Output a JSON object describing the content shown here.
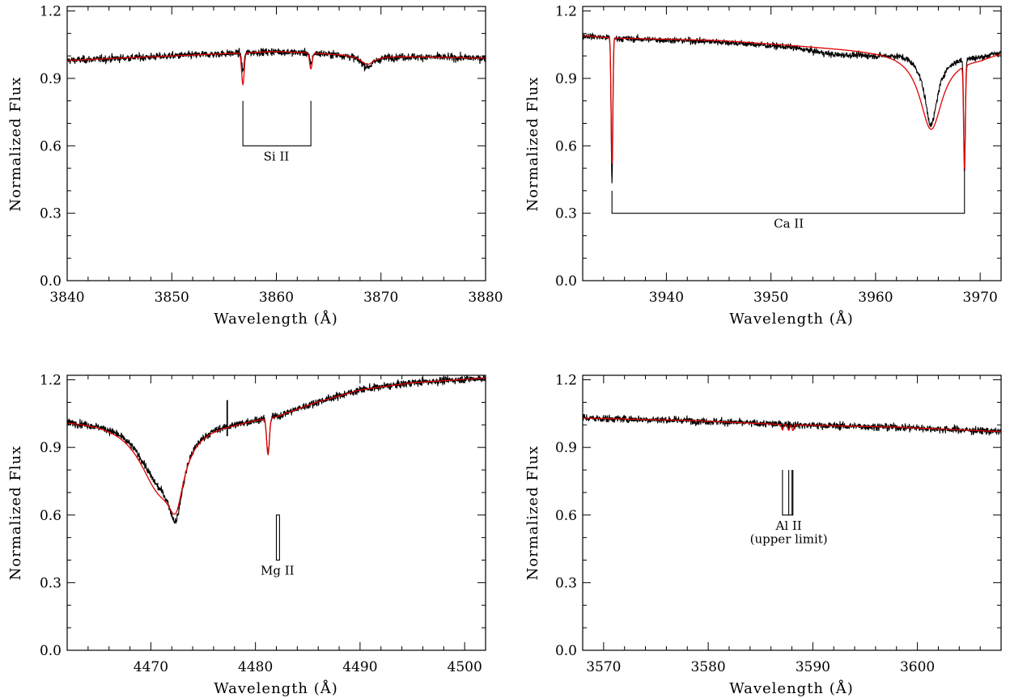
{
  "chart_data": [
    {
      "type": "line",
      "id": "si",
      "xlabel": "Wavelength (Å)",
      "ylabel": "Normalized Flux",
      "xlim": [
        3840,
        3880
      ],
      "ylim": [
        0.0,
        1.22
      ],
      "xticks": [
        3840,
        3850,
        3860,
        3870,
        3880
      ],
      "yticks": [
        0.0,
        0.3,
        0.6,
        0.9,
        1.2
      ],
      "ytick_labels": [
        "0.0",
        "0.3",
        "0.6",
        "0.9",
        "1.2"
      ],
      "continuum": [
        [
          3840,
          0.98
        ],
        [
          3850,
          1.0
        ],
        [
          3860,
          1.02
        ],
        [
          3870,
          1.0
        ],
        [
          3880,
          0.99
        ]
      ],
      "model_lines": [
        {
          "center": 3856.8,
          "depth": 0.14,
          "width": 0.12,
          "shape": "gauss"
        },
        {
          "center": 3863.3,
          "depth": 0.07,
          "width": 0.12,
          "shape": "gauss"
        },
        {
          "center": 3868.7,
          "depth": 0.04,
          "width": 0.8,
          "shape": "lorentz"
        }
      ],
      "observed_lines": [
        {
          "center": 3856.8,
          "depth": 0.08,
          "width": 0.12,
          "shape": "gauss"
        },
        {
          "center": 3863.3,
          "depth": 0.05,
          "width": 0.12,
          "shape": "gauss"
        },
        {
          "center": 3868.7,
          "depth": 0.05,
          "width": 0.8,
          "shape": "lorentz"
        }
      ],
      "noise": 0.012,
      "annotations": [
        {
          "label": "Si II",
          "bracket": {
            "type": "bracket",
            "x1": 3856.8,
            "x2": 3863.3,
            "y_top": 0.8,
            "y_base": 0.6
          },
          "text_x": 3860.0,
          "text_y": 0.535
        }
      ]
    },
    {
      "type": "line",
      "id": "ca",
      "xlabel": "Wavelength (Å)",
      "ylabel": "Normalized Flux",
      "xlim": [
        3932,
        3972
      ],
      "ylim": [
        0.0,
        1.22
      ],
      "xticks": [
        3940,
        3950,
        3960,
        3970
      ],
      "yticks": [
        0.0,
        0.3,
        0.6,
        0.9,
        1.2
      ],
      "ytick_labels": [
        "0.0",
        "0.3",
        "0.6",
        "0.9",
        "1.2"
      ],
      "continuum": [
        [
          3932,
          1.09
        ],
        [
          3935,
          1.08
        ],
        [
          3945,
          1.07
        ],
        [
          3955,
          1.04
        ],
        [
          3962,
          1.02
        ],
        [
          3966,
          1.0
        ],
        [
          3970,
          1.0
        ],
        [
          3972,
          1.02
        ]
      ],
      "model_lines": [
        {
          "center": 3934.8,
          "depth": 0.56,
          "width": 0.08,
          "shape": "gauss"
        },
        {
          "center": 3968.5,
          "depth": 0.47,
          "width": 0.08,
          "shape": "gauss"
        },
        {
          "center": 3965.3,
          "depth": 0.33,
          "width": 1.3,
          "shape": "lorentz"
        }
      ],
      "observed_lines": [
        {
          "center": 3934.8,
          "depth": 0.64,
          "width": 0.08,
          "shape": "gauss"
        },
        {
          "center": 3968.5,
          "depth": 0.45,
          "width": 0.08,
          "shape": "gauss"
        },
        {
          "center": 3965.3,
          "depth": 0.31,
          "width": 0.75,
          "shape": "lorentz"
        }
      ],
      "observed_offsets": [
        [
          3932,
          0.0
        ],
        [
          3952,
          -0.01
        ],
        [
          3956,
          -0.03
        ],
        [
          3960,
          -0.02
        ],
        [
          3963,
          0.0
        ],
        [
          3972,
          0.0
        ]
      ],
      "noise": 0.01,
      "annotations": [
        {
          "label": "Ca II",
          "bracket": {
            "type": "bracket_unequal",
            "x1": 3934.8,
            "x2": 3968.5,
            "y_top1": 0.4,
            "y_top2": 0.5,
            "y_base": 0.3
          },
          "text_x": 3951.7,
          "text_y": 0.235
        }
      ]
    },
    {
      "type": "line",
      "id": "mg",
      "xlabel": "Wavelength (Å)",
      "ylabel": "Normalized Flux",
      "xlim": [
        4462,
        4502
      ],
      "ylim": [
        0.0,
        1.22
      ],
      "xticks": [
        4470,
        4480,
        4490,
        4500
      ],
      "yticks": [
        0.0,
        0.3,
        0.6,
        0.9,
        1.2
      ],
      "ytick_labels": [
        "0.0",
        "0.3",
        "0.6",
        "0.9",
        "1.2"
      ],
      "continuum": [
        [
          4462,
          1.03
        ],
        [
          4470,
          1.03
        ],
        [
          4478,
          1.03
        ],
        [
          4482,
          1.05
        ],
        [
          4486,
          1.11
        ],
        [
          4490,
          1.16
        ],
        [
          4495,
          1.19
        ],
        [
          4502,
          1.21
        ]
      ],
      "model_lines": [
        {
          "center": 4470.8,
          "depth": 0.29,
          "width": 2.4,
          "shape": "lorentz"
        },
        {
          "center": 4472.4,
          "depth": 0.22,
          "width": 0.9,
          "shape": "lorentz"
        },
        {
          "center": 4481.2,
          "depth": 0.16,
          "width": 0.13,
          "shape": "gauss"
        }
      ],
      "observed_lines": [
        {
          "center": 4470.8,
          "depth": 0.25,
          "width": 2.4,
          "shape": "lorentz"
        },
        {
          "center": 4472.4,
          "depth": 0.28,
          "width": 0.85,
          "shape": "lorentz"
        },
        {
          "center": 4481.2,
          "depth": 0.16,
          "width": 0.13,
          "shape": "gauss"
        }
      ],
      "spike": {
        "x": 4477.3,
        "y_low": 0.95,
        "y_high": 1.11
      },
      "noise": 0.012,
      "annotations": [
        {
          "label": "Mg II",
          "bracket": {
            "type": "doublet",
            "x1": 4482.0,
            "x2": 4482.3,
            "y_top": 0.6,
            "y_base": 0.4
          },
          "text_x": 4482.1,
          "text_y": 0.335
        }
      ]
    },
    {
      "type": "line",
      "id": "al",
      "xlabel": "Wavelength (Å)",
      "ylabel": "Normalized Flux",
      "xlim": [
        3568,
        3608
      ],
      "ylim": [
        0.0,
        1.22
      ],
      "xticks": [
        3570,
        3580,
        3590,
        3600
      ],
      "yticks": [
        0.0,
        0.3,
        0.6,
        0.9,
        1.2
      ],
      "ytick_labels": [
        "0.0",
        "0.3",
        "0.6",
        "0.9",
        "1.2"
      ],
      "continuum": [
        [
          3568,
          1.03
        ],
        [
          3578,
          1.02
        ],
        [
          3588,
          1.0
        ],
        [
          3598,
          0.99
        ],
        [
          3608,
          0.97
        ]
      ],
      "model_lines": [
        {
          "center": 3587.1,
          "depth": 0.025,
          "width": 0.08,
          "shape": "gauss"
        },
        {
          "center": 3587.7,
          "depth": 0.025,
          "width": 0.08,
          "shape": "gauss"
        },
        {
          "center": 3588.1,
          "depth": 0.025,
          "width": 0.08,
          "shape": "gauss"
        }
      ],
      "observed_lines": [],
      "noise": 0.012,
      "annotations": [
        {
          "label": "Al II",
          "label2": "(upper limit)",
          "bracket": {
            "type": "triplet",
            "xs": [
              3587.1,
              3587.7,
              3588.1
            ],
            "y_top": 0.8,
            "y_base": 0.6
          },
          "text_x": 3587.7,
          "text_y": 0.535,
          "text2_y": 0.475
        }
      ]
    }
  ],
  "colors": {
    "observed": "#000000",
    "model": "#e00000",
    "axes": "#000000"
  }
}
